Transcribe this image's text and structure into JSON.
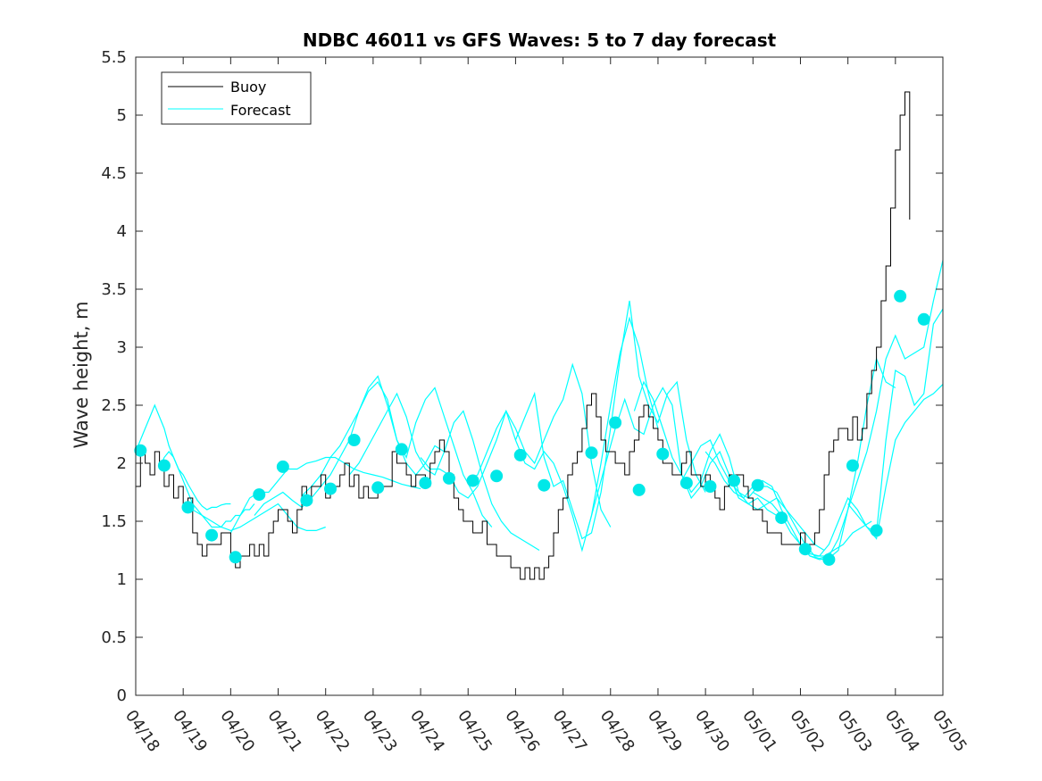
{
  "chart_data": {
    "type": "line",
    "title": "NDBC 46011 vs GFS Waves: 5 to 7 day forecast",
    "xlabel": "",
    "ylabel": "Wave height, m",
    "xlim": [
      0,
      17
    ],
    "ylim": [
      0,
      5.5
    ],
    "yticks": [
      0,
      0.5,
      1,
      1.5,
      2,
      2.5,
      3,
      3.5,
      4,
      4.5,
      5,
      5.5
    ],
    "ytick_labels": [
      "0",
      "0.5",
      "1",
      "1.5",
      "2",
      "2.5",
      "3",
      "3.5",
      "4",
      "4.5",
      "5",
      "5.5"
    ],
    "xtick_labels": [
      "04/18",
      "04/19",
      "04/20",
      "04/21",
      "04/22",
      "04/23",
      "04/24",
      "04/25",
      "04/26",
      "04/27",
      "04/28",
      "04/29",
      "04/30",
      "05/01",
      "05/02",
      "05/03",
      "05/04",
      "05/05"
    ],
    "grid": false,
    "legend": {
      "position": "top-left",
      "entries": [
        "Buoy",
        "Forecast"
      ]
    },
    "colors": {
      "buoy": "#000000",
      "forecast": "#00ffff",
      "markers": "#00e8e8"
    },
    "buoy": {
      "name": "Buoy",
      "x": [
        0,
        0.1,
        0.2,
        0.3,
        0.4,
        0.5,
        0.6,
        0.7,
        0.8,
        0.9,
        1.0,
        1.1,
        1.2,
        1.3,
        1.4,
        1.5,
        1.6,
        1.7,
        1.8,
        1.9,
        2.0,
        2.1,
        2.2,
        2.3,
        2.4,
        2.5,
        2.6,
        2.7,
        2.8,
        2.9,
        3.0,
        3.1,
        3.2,
        3.3,
        3.4,
        3.5,
        3.6,
        3.7,
        3.8,
        3.9,
        4.0,
        4.1,
        4.2,
        4.3,
        4.4,
        4.5,
        4.6,
        4.7,
        4.8,
        4.9,
        5.0,
        5.1,
        5.2,
        5.3,
        5.4,
        5.5,
        5.6,
        5.7,
        5.8,
        5.9,
        6.0,
        6.1,
        6.2,
        6.3,
        6.4,
        6.5,
        6.6,
        6.7,
        6.8,
        6.9,
        7.0,
        7.1,
        7.2,
        7.3,
        7.4,
        7.5,
        7.6,
        7.7,
        7.8,
        7.9,
        8.0,
        8.1,
        8.2,
        8.3,
        8.4,
        8.5,
        8.6,
        8.7,
        8.8,
        8.9,
        9.0,
        9.1,
        9.2,
        9.3,
        9.4,
        9.5,
        9.6,
        9.7,
        9.8,
        9.9,
        10.0,
        10.1,
        10.2,
        10.3,
        10.4,
        10.5,
        10.6,
        10.7,
        10.8,
        10.9,
        11.0,
        11.1,
        11.2,
        11.3,
        11.4,
        11.5,
        11.6,
        11.7,
        11.8,
        11.9,
        12.0,
        12.1,
        12.2,
        12.3,
        12.4,
        12.5,
        12.6,
        12.7,
        12.8,
        12.9,
        13.0,
        13.1,
        13.2,
        13.3,
        13.4,
        13.5,
        13.6,
        13.7,
        13.8,
        13.9,
        14.0,
        14.1,
        14.2,
        14.3,
        14.4,
        14.5,
        14.6,
        14.7,
        14.8,
        14.9,
        15.0,
        15.1,
        15.2,
        15.3,
        15.4,
        15.5,
        15.6,
        15.7,
        15.8,
        15.9,
        16.0,
        16.1,
        16.2,
        16.3
      ],
      "y": [
        1.8,
        2.1,
        2.0,
        1.9,
        2.1,
        2.0,
        1.8,
        1.9,
        1.7,
        1.8,
        1.6,
        1.7,
        1.4,
        1.3,
        1.2,
        1.3,
        1.3,
        1.3,
        1.4,
        1.4,
        1.2,
        1.1,
        1.2,
        1.2,
        1.3,
        1.2,
        1.3,
        1.2,
        1.4,
        1.5,
        1.6,
        1.6,
        1.5,
        1.4,
        1.6,
        1.8,
        1.7,
        1.8,
        1.8,
        1.9,
        1.7,
        1.8,
        1.8,
        1.9,
        2.0,
        1.8,
        1.9,
        1.7,
        1.8,
        1.7,
        1.7,
        1.8,
        1.8,
        1.8,
        2.1,
        2.0,
        2.0,
        1.9,
        1.8,
        1.9,
        1.9,
        1.8,
        2.0,
        2.1,
        2.2,
        2.1,
        1.9,
        1.7,
        1.6,
        1.5,
        1.5,
        1.4,
        1.4,
        1.5,
        1.3,
        1.3,
        1.2,
        1.2,
        1.2,
        1.1,
        1.1,
        1.0,
        1.1,
        1.0,
        1.1,
        1.0,
        1.1,
        1.2,
        1.4,
        1.6,
        1.7,
        1.9,
        2.0,
        2.1,
        2.3,
        2.5,
        2.6,
        2.4,
        2.2,
        2.1,
        2.1,
        2.0,
        2.0,
        1.9,
        2.1,
        2.2,
        2.4,
        2.5,
        2.4,
        2.3,
        2.2,
        2.0,
        2.0,
        1.9,
        1.9,
        2.0,
        2.1,
        1.9,
        1.9,
        1.8,
        1.9,
        1.8,
        1.7,
        1.6,
        1.8,
        1.9,
        1.9,
        1.9,
        1.8,
        1.7,
        1.6,
        1.6,
        1.5,
        1.4,
        1.4,
        1.4,
        1.3,
        1.3,
        1.3,
        1.3,
        1.4,
        1.3,
        1.3,
        1.4,
        1.6,
        1.9,
        2.1,
        2.2,
        2.3,
        2.3,
        2.2,
        2.4,
        2.2,
        2.3,
        2.6,
        2.8,
        3.0,
        3.4,
        3.7,
        4.2,
        4.7,
        5.0,
        5.2,
        4.1
      ]
    },
    "forecast_runs": [
      {
        "x": [
          0.0,
          0.1,
          0.2,
          0.3,
          0.4,
          0.5,
          0.6,
          0.7,
          0.8,
          0.9,
          1.0,
          1.1,
          1.2,
          1.3,
          1.4,
          1.5,
          1.6,
          1.7,
          1.8,
          1.9,
          2.0
        ],
        "y": [
          2.1,
          2.2,
          2.3,
          2.4,
          2.5,
          2.4,
          2.3,
          2.15,
          2.05,
          1.95,
          1.9,
          1.82,
          1.75,
          1.68,
          1.63,
          1.6,
          1.62,
          1.62,
          1.64,
          1.65,
          1.65
        ]
      },
      {
        "x": [
          0.5,
          0.6,
          0.7,
          0.8,
          0.9,
          1.0,
          1.1,
          1.2,
          1.3,
          1.4,
          1.5,
          1.6,
          1.7,
          1.8,
          1.9,
          2.0,
          2.1,
          2.2,
          2.3,
          2.4,
          2.5
        ],
        "y": [
          1.95,
          2.05,
          2.1,
          2.05,
          1.95,
          1.85,
          1.75,
          1.65,
          1.6,
          1.55,
          1.5,
          1.45,
          1.45,
          1.45,
          1.5,
          1.5,
          1.55,
          1.55,
          1.6,
          1.6,
          1.65
        ]
      },
      {
        "x": [
          1.0,
          1.2,
          1.4,
          1.6,
          1.8,
          2.0,
          2.2,
          2.4,
          2.6,
          2.8,
          3.0,
          3.2,
          3.4,
          3.6,
          3.8,
          4.0
        ],
        "y": [
          1.62,
          1.6,
          1.55,
          1.5,
          1.45,
          1.42,
          1.45,
          1.5,
          1.55,
          1.6,
          1.65,
          1.55,
          1.45,
          1.42,
          1.42,
          1.45
        ]
      },
      {
        "x": [
          2.0,
          2.2,
          2.4,
          2.6,
          2.8,
          3.0,
          3.2,
          3.4,
          3.6,
          3.8,
          4.0,
          4.2,
          4.4,
          4.6,
          4.8,
          5.0,
          5.2,
          5.4,
          5.6,
          5.8,
          6.0
        ],
        "y": [
          1.4,
          1.55,
          1.7,
          1.75,
          1.75,
          1.85,
          1.95,
          1.95,
          2.0,
          2.02,
          2.05,
          2.05,
          2.0,
          1.95,
          1.92,
          1.9,
          1.88,
          1.85,
          1.82,
          1.8,
          1.78
        ]
      },
      {
        "x": [
          2.5,
          2.7,
          2.9,
          3.1,
          3.3,
          3.5,
          3.7,
          3.9,
          4.1,
          4.3,
          4.5,
          4.7,
          4.9,
          5.1,
          5.3,
          5.5,
          5.7,
          5.9,
          6.1,
          6.3,
          6.5
        ],
        "y": [
          1.55,
          1.65,
          1.7,
          1.75,
          1.68,
          1.62,
          1.7,
          1.8,
          1.9,
          2.05,
          2.2,
          2.45,
          2.65,
          2.75,
          2.5,
          2.2,
          2.0,
          1.9,
          2.0,
          2.15,
          2.1
        ]
      },
      {
        "x": [
          3.5,
          3.7,
          3.9,
          4.1,
          4.3,
          4.5,
          4.7,
          4.9,
          5.1,
          5.3,
          5.5,
          5.7,
          5.9,
          6.1,
          6.3,
          6.5,
          6.7,
          6.9,
          7.1,
          7.3,
          7.5
        ],
        "y": [
          1.72,
          1.8,
          1.9,
          2.05,
          2.15,
          2.3,
          2.45,
          2.62,
          2.7,
          2.55,
          2.2,
          2.05,
          2.35,
          2.55,
          2.65,
          2.4,
          2.15,
          1.9,
          1.75,
          1.55,
          1.45
        ]
      },
      {
        "x": [
          4.5,
          4.7,
          4.9,
          5.1,
          5.3,
          5.5,
          5.7,
          5.9,
          6.1,
          6.3,
          6.5,
          6.7,
          6.9,
          7.1,
          7.3,
          7.5,
          7.7,
          7.9,
          8.1,
          8.3,
          8.5
        ],
        "y": [
          1.9,
          2.0,
          2.15,
          2.3,
          2.45,
          2.6,
          2.4,
          2.1,
          1.95,
          1.9,
          2.1,
          2.35,
          2.45,
          2.2,
          1.9,
          1.65,
          1.5,
          1.4,
          1.35,
          1.3,
          1.25
        ]
      },
      {
        "x": [
          6.0,
          6.2,
          6.4,
          6.6,
          6.8,
          7.0,
          7.2,
          7.4,
          7.6,
          7.8,
          8.0,
          8.2,
          8.4,
          8.6,
          8.8,
          9.0,
          9.2,
          9.4,
          9.6,
          9.8,
          10.0
        ],
        "y": [
          2.05,
          1.95,
          1.95,
          1.9,
          1.75,
          1.7,
          1.8,
          2.0,
          2.2,
          2.45,
          2.3,
          2.1,
          2.0,
          2.2,
          2.4,
          2.55,
          2.85,
          2.6,
          2.0,
          1.6,
          1.45
        ]
      },
      {
        "x": [
          7.0,
          7.2,
          7.4,
          7.6,
          7.8,
          8.0,
          8.2,
          8.4,
          8.6,
          8.8,
          9.0,
          9.2,
          9.4,
          9.6,
          9.8,
          10.0,
          10.2,
          10.4,
          10.6,
          10.8,
          11.0
        ],
        "y": [
          1.85,
          1.9,
          2.1,
          2.3,
          2.45,
          2.2,
          2.0,
          1.95,
          2.1,
          2.0,
          1.8,
          1.55,
          1.25,
          1.55,
          2.0,
          2.5,
          2.95,
          3.25,
          3.0,
          2.6,
          2.3
        ]
      },
      {
        "x": [
          8.0,
          8.2,
          8.4,
          8.6,
          8.8,
          9.0,
          9.2,
          9.4,
          9.6,
          9.8,
          10.0,
          10.2,
          10.4,
          10.6,
          10.8,
          11.0,
          11.2,
          11.4,
          11.6,
          11.8,
          12.0
        ],
        "y": [
          2.2,
          2.4,
          2.6,
          2.05,
          1.8,
          1.85,
          1.6,
          1.35,
          1.4,
          1.75,
          2.3,
          2.9,
          3.4,
          2.75,
          2.5,
          2.35,
          2.6,
          2.7,
          2.2,
          1.9,
          1.75
        ]
      },
      {
        "x": [
          9.5,
          9.7,
          9.9,
          10.1,
          10.3,
          10.5,
          10.7,
          10.9,
          11.1,
          11.3,
          11.5,
          11.7,
          11.9,
          12.1,
          12.3,
          12.5,
          12.7,
          12.9,
          13.1,
          13.3,
          13.5
        ],
        "y": [
          1.4,
          1.7,
          2.0,
          2.3,
          2.55,
          2.3,
          2.25,
          2.5,
          2.65,
          2.5,
          1.9,
          1.7,
          1.8,
          2.0,
          2.1,
          1.9,
          1.7,
          1.65,
          1.7,
          1.6,
          1.55
        ]
      },
      {
        "x": [
          10.5,
          10.7,
          10.9,
          11.1,
          11.3,
          11.5,
          11.7,
          11.9,
          12.1,
          12.3,
          12.5,
          12.7,
          12.9,
          13.1,
          13.3,
          13.5,
          13.7,
          13.9,
          14.1,
          14.3,
          14.5
        ],
        "y": [
          2.45,
          2.7,
          2.55,
          2.3,
          2.05,
          1.9,
          1.75,
          1.85,
          2.1,
          2.25,
          2.05,
          1.75,
          1.65,
          1.6,
          1.65,
          1.7,
          1.6,
          1.5,
          1.4,
          1.3,
          1.25
        ]
      },
      {
        "x": [
          11.5,
          11.7,
          11.9,
          12.1,
          12.3,
          12.5,
          12.7,
          12.9,
          13.1,
          13.3,
          13.5,
          13.7,
          13.9,
          14.1,
          14.3,
          14.5,
          14.7,
          14.9,
          15.1,
          15.3,
          15.5
        ],
        "y": [
          1.85,
          2.0,
          2.15,
          2.2,
          2.0,
          1.85,
          1.75,
          1.7,
          1.8,
          1.8,
          1.75,
          1.6,
          1.45,
          1.3,
          1.2,
          1.2,
          1.25,
          1.3,
          1.4,
          1.45,
          1.5
        ]
      },
      {
        "x": [
          12.0,
          12.2,
          12.4,
          12.6,
          12.8,
          13.0,
          13.2,
          13.4,
          13.6,
          13.8,
          14.0,
          14.2,
          14.4,
          14.6,
          14.8,
          15.0,
          15.2,
          15.4,
          15.6,
          15.8,
          16.0
        ],
        "y": [
          2.1,
          2.0,
          1.85,
          1.75,
          1.7,
          1.8,
          1.85,
          1.8,
          1.6,
          1.45,
          1.3,
          1.2,
          1.17,
          1.18,
          1.25,
          1.6,
          2.0,
          2.5,
          2.9,
          2.7,
          2.65
        ]
      },
      {
        "x": [
          13.0,
          13.2,
          13.4,
          13.6,
          13.8,
          14.0,
          14.2,
          14.4,
          14.6,
          14.8,
          15.0,
          15.2,
          15.4,
          15.6,
          15.8,
          16.0,
          16.2,
          16.4,
          16.6,
          16.8,
          17.0
        ],
        "y": [
          1.75,
          1.7,
          1.65,
          1.55,
          1.4,
          1.3,
          1.22,
          1.2,
          1.3,
          1.5,
          1.7,
          1.6,
          1.45,
          1.4,
          2.2,
          2.8,
          2.75,
          2.5,
          2.6,
          3.2,
          3.33
        ]
      },
      {
        "x": [
          14.0,
          14.2,
          14.4,
          14.6,
          14.8,
          15.0,
          15.2,
          15.4,
          15.6,
          15.8,
          16.0,
          16.2,
          16.4,
          16.6,
          16.8,
          17.0
        ],
        "y": [
          1.3,
          1.2,
          1.18,
          1.2,
          1.35,
          1.6,
          1.85,
          2.1,
          2.45,
          2.9,
          3.1,
          2.9,
          2.95,
          3.0,
          3.4,
          3.75
        ]
      },
      {
        "x": [
          15.0,
          15.2,
          15.4,
          15.6,
          15.8,
          16.0,
          16.2,
          16.4,
          16.6,
          16.8,
          17.0
        ],
        "y": [
          1.65,
          1.55,
          1.45,
          1.35,
          1.8,
          2.2,
          2.35,
          2.45,
          2.55,
          2.6,
          2.68
        ]
      }
    ],
    "forecast_points": {
      "name": "Forecast",
      "x": [
        0.1,
        0.6,
        1.1,
        1.6,
        2.1,
        2.6,
        3.1,
        3.6,
        4.1,
        4.6,
        5.1,
        5.6,
        6.1,
        6.6,
        7.1,
        7.6,
        8.1,
        8.6,
        9.6,
        10.1,
        10.6,
        11.1,
        11.6,
        12.1,
        12.6,
        13.1,
        13.6,
        14.1,
        14.6,
        15.1,
        15.6,
        16.1,
        16.6
      ],
      "y": [
        2.11,
        1.98,
        1.62,
        1.38,
        1.19,
        1.73,
        1.97,
        1.68,
        1.78,
        2.2,
        1.79,
        2.12,
        1.83,
        1.87,
        1.85,
        1.89,
        2.07,
        1.81,
        2.09,
        2.35,
        1.77,
        2.08,
        1.83,
        1.8,
        1.85,
        1.81,
        1.53,
        1.26,
        1.17,
        1.98,
        1.42,
        3.44,
        3.24
      ]
    }
  }
}
